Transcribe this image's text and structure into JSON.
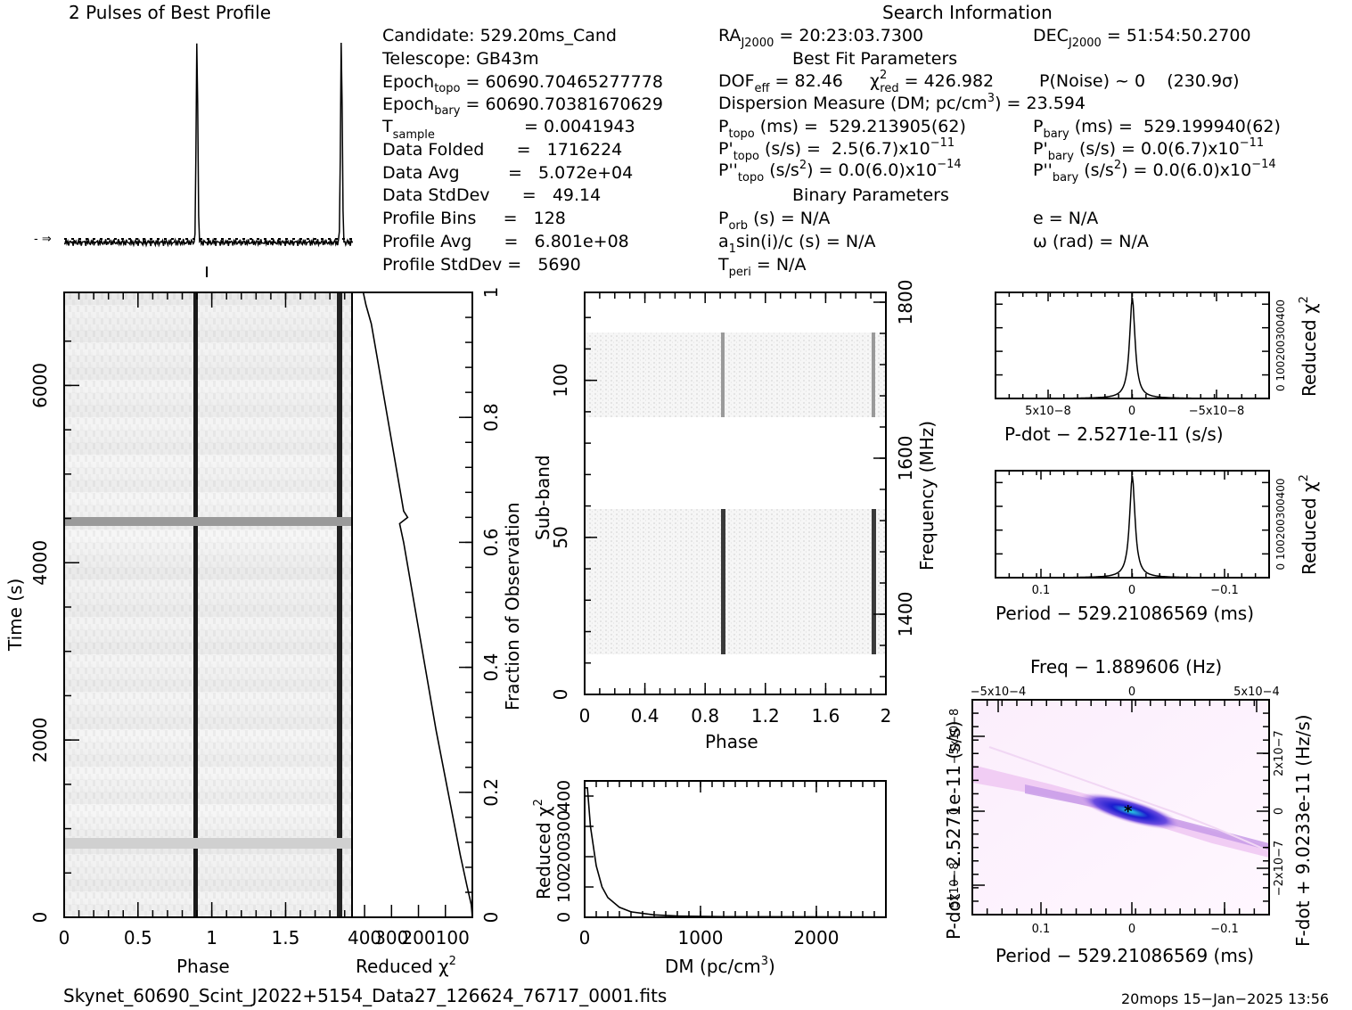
{
  "header": {
    "profile_title": "2 Pulses of Best Profile",
    "search_title": "Search Information",
    "best_fit_title": "Best Fit Parameters",
    "binary_title": "Binary Parameters"
  },
  "info": {
    "candidate": "Candidate:  529.20ms_Cand",
    "telescope": "Telescope:  GB43m",
    "epoch_topo_a": "Epoch",
    "epoch_topo_sub": "topo",
    "epoch_topo_b": " = 60690.70465277778",
    "epoch_bary_a": "Epoch",
    "epoch_bary_sub": "bary",
    "epoch_bary_b": " = 60690.70381670629",
    "tsample_a": "T",
    "tsample_sub": "sample",
    "tsample_b": "=   0.0041943",
    "data_folded": "Data Folded      =   1716224",
    "data_avg": "Data Avg         =   5.072e+04",
    "data_stddev": "Data StdDev      =   49.14",
    "profile_bins": "Profile Bins     =   128",
    "profile_avg": "Profile Avg      =   6.801e+08",
    "profile_stddev": "Profile StdDev =   5690"
  },
  "params": {
    "ra_a": "RA",
    "ra_sub": "J2000",
    "ra_b": " = 20:23:03.7300",
    "dec_a": "DEC",
    "dec_sub": "J2000",
    "dec_b": " = 51:54:50.2700",
    "dof_a": "DOF",
    "dof_sub": "eff",
    "dof_b": " = 82.46",
    "chi_a": "χ",
    "chi_sup": "2",
    "chi_sub": "red",
    "chi_b": " = 426.982",
    "pnoise": "P(Noise) ~ 0    (230.9σ)",
    "dm_a": "Dispersion Measure (DM; pc/cm",
    "dm_sup": "3",
    "dm_b": ") = 23.594",
    "ptopo_a": "P",
    "ptopo_sub": "topo",
    "ptopo_b": " (ms) =  529.213905(62)",
    "pbary_a": "P",
    "pbary_sub": "bary",
    "pbary_b": " (ms) =  529.199940(62)",
    "pdtopo_a": "P'",
    "pdtopo_sub": "topo",
    "pdtopo_b": " (s/s) =  2.5(6.7)x10",
    "pdtopo_sup": "−11",
    "pdbary_a": "P'",
    "pdbary_sub": "bary",
    "pdbary_b": " (s/s) = 0.0(6.7)x10",
    "pdbary_sup": "−11",
    "pddtopo_a": "P''",
    "pddtopo_sub": "topo",
    "pddtopo_b": " (s/s",
    "pddtopo_sup2": "2",
    "pddtopo_c": ") = 0.0(6.0)x10",
    "pddtopo_sup": "−14",
    "pddbary_a": "P''",
    "pddbary_sub": "bary",
    "pddbary_b": " (s/s",
    "pddbary_sup2": "2",
    "pddbary_c": ") = 0.0(6.0)x10",
    "pddbary_sup": "−14",
    "porb_a": "P",
    "porb_sub": "orb",
    "porb_b": " (s) = N/A",
    "ecc": "e = N/A",
    "a1_a": "a",
    "a1_sub": "1",
    "a1_b": "sin(i)/c (s) = N/A",
    "omega": "ω (rad) = N/A",
    "tperi_a": "T",
    "tperi_sub": "peri",
    "tperi_b": " = N/A"
  },
  "footer": {
    "filename": "Skynet_60690_Scint_J2022+5154_Data27_126624_76717_0001.fits",
    "stamp": "20mops 15−Jan−2025 13:56"
  },
  "colors": {
    "ink": "#000000",
    "waterfall_bg": "#f0f0f0",
    "ppdot_low": "#ffffff",
    "ppdot_mid": "#e7b3ec",
    "ppdot_high": "#1c1ccf",
    "ppdot_peak": "#27d6e0"
  },
  "chart_data": [
    {
      "id": "profile",
      "type": "line",
      "title": "2 Pulses of Best Profile",
      "x": {
        "label": "",
        "range": [
          0,
          2
        ]
      },
      "peaks_phase": [
        0.92,
        1.92
      ],
      "baseline_marker": "dotted line at profile average"
    },
    {
      "id": "time_phase",
      "type": "heatmap",
      "xlabel": "Phase",
      "ylabel": "Time (s)",
      "xlim": [
        0,
        1.95
      ],
      "ylim": [
        0,
        7050
      ],
      "x_ticks": [
        "0",
        "0.5",
        "1",
        "1.5"
      ],
      "y_ticks": [
        "0",
        "2000",
        "4000",
        "6000"
      ],
      "pulse_phases": [
        0.92,
        1.92
      ],
      "bright_row_time_s": 4550
    },
    {
      "id": "chi_vs_fraction",
      "type": "line",
      "xlabel": "Reduced χ2",
      "ylabel": "Fraction of Observation",
      "ylim": [
        0,
        1
      ],
      "x_tick_labels": [
        "400",
        "300",
        "200",
        "100"
      ],
      "y_ticks": [
        "0",
        "0.2",
        "0.4",
        "0.6",
        "0.8",
        "1"
      ],
      "points": [
        [
          0.0,
          0
        ],
        [
          0.02,
          4
        ],
        [
          0.05,
          20
        ],
        [
          0.1,
          45
        ],
        [
          0.2,
          90
        ],
        [
          0.3,
          135
        ],
        [
          0.4,
          175
        ],
        [
          0.5,
          215
        ],
        [
          0.6,
          255
        ],
        [
          0.63,
          270
        ],
        [
          0.64,
          240
        ],
        [
          0.65,
          255
        ],
        [
          0.7,
          275
        ],
        [
          0.8,
          315
        ],
        [
          0.9,
          355
        ],
        [
          0.95,
          375
        ],
        [
          0.98,
          395
        ],
        [
          1.0,
          405
        ]
      ]
    },
    {
      "id": "subband_phase",
      "type": "heatmap",
      "xlabel": "Phase",
      "ylabel": "Sub-band",
      "y2label": "Frequency (MHz)",
      "xlim": [
        0,
        2
      ],
      "ylim": [
        0,
        128
      ],
      "x_ticks": [
        "0",
        "0.4",
        "0.8",
        "1.2",
        "1.6",
        "2"
      ],
      "y_ticks": [
        "0",
        "50",
        "100"
      ],
      "y2_ticks": [
        "1400",
        "1600",
        "1800"
      ],
      "filled_subbands": [
        [
          13,
          59
        ],
        [
          87,
          116
        ]
      ],
      "pulse_phases": [
        0.92,
        1.92
      ]
    },
    {
      "id": "dm_curve",
      "type": "line",
      "xlabel": "DM (pc/cm3)",
      "ylabel": "Reduced χ2",
      "xlim": [
        0,
        2600
      ],
      "ylim": [
        0,
        450
      ],
      "x_ticks": [
        "0",
        "1000",
        "2000"
      ],
      "y_tick_labels": [
        "0",
        "100",
        "200",
        "300",
        "400"
      ],
      "points": [
        [
          0,
          427
        ],
        [
          24,
          427
        ],
        [
          50,
          300
        ],
        [
          100,
          170
        ],
        [
          150,
          100
        ],
        [
          200,
          65
        ],
        [
          300,
          33
        ],
        [
          400,
          18
        ],
        [
          600,
          8
        ],
        [
          800,
          4
        ],
        [
          1200,
          2
        ],
        [
          2600,
          1
        ]
      ]
    },
    {
      "id": "pdot_curve",
      "type": "line",
      "xlabel": "P-dot − 2.5271e-11 (s/s)",
      "ylabel": "Reduced χ2",
      "x_ticks": [
        "5x10−8",
        "0",
        "−5x10−8"
      ],
      "y_tick_labels": [
        "0",
        "100",
        "200",
        "300",
        "400"
      ],
      "ylim": [
        0,
        450
      ],
      "peak": 427
    },
    {
      "id": "period_curve",
      "type": "line",
      "xlabel": "Period − 529.21086569 (ms)",
      "ylabel": "Reduced χ2",
      "x_ticks": [
        "0.1",
        "0",
        "−0.1"
      ],
      "y_tick_labels": [
        "0",
        "100",
        "200",
        "300",
        "400"
      ],
      "ylim": [
        0,
        450
      ],
      "peak": 427
    },
    {
      "id": "p_pdot_plane",
      "type": "heatmap",
      "title": "Freq − 1.889606 (Hz)",
      "xlabel": "Period − 529.21086569 (ms)",
      "ylabel": "P-dot − 2.5271e-11 (s/s)",
      "y2label": "F-dot + 9.0233e-11 (Hz/s)",
      "x_ticks": [
        "0.1",
        "0",
        "−0.1"
      ],
      "top_ticks": [
        "−5x10−4",
        "0",
        "5x10−4"
      ],
      "y_ticks": [
        "5x10−8",
        "0",
        "−5x10−8"
      ],
      "y2_ticks": [
        "2x10−7",
        "0",
        "−2x10−7"
      ],
      "best": [
        0,
        0
      ]
    }
  ]
}
